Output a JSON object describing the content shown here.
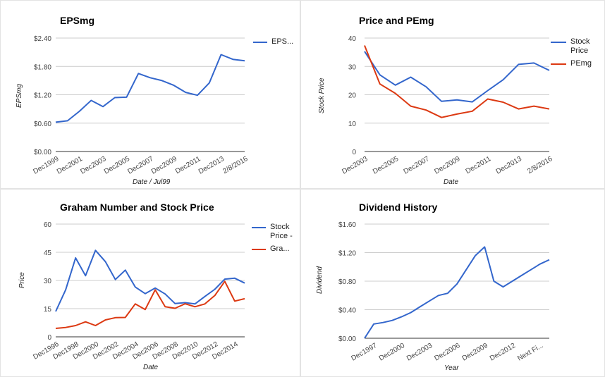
{
  "chart_data": [
    {
      "type": "line",
      "title": "EPSmg",
      "xlabel": "Date / Jul99",
      "ylabel": "EPSmg",
      "ylim": [
        0,
        2.4
      ],
      "yticks": [
        "$0.00",
        "$0.60",
        "$1.20",
        "$1.80",
        "$2.40"
      ],
      "categories": [
        "Dec1999",
        "",
        "Dec2001",
        "",
        "Dec2003",
        "",
        "Dec2005",
        "",
        "Dec2007",
        "",
        "Dec2009",
        "",
        "Dec2011",
        "",
        "Dec2013",
        "",
        "2/8/2016"
      ],
      "series": [
        {
          "name": "EPS...",
          "color": "#3366cc",
          "values": [
            0.62,
            0.65,
            0.85,
            1.08,
            0.95,
            1.14,
            1.15,
            1.65,
            1.56,
            1.5,
            1.4,
            1.25,
            1.19,
            1.45,
            2.05,
            1.95,
            1.92
          ]
        }
      ],
      "legend": "right",
      "grid": true
    },
    {
      "type": "line",
      "title": "Price and PEmg",
      "xlabel": "Date",
      "ylabel": "Stock Price",
      "ylim": [
        0,
        40
      ],
      "yticks": [
        "0",
        "10",
        "20",
        "30",
        "40"
      ],
      "categories": [
        "Dec2003",
        "",
        "Dec2005",
        "",
        "Dec2007",
        "",
        "Dec2009",
        "",
        "Dec2011",
        "",
        "Dec2013",
        "",
        "2/8/2016"
      ],
      "series": [
        {
          "name": "Stock Price",
          "color": "#3366cc",
          "values": [
            35.3,
            27,
            23.4,
            26.2,
            22.8,
            17.7,
            18.2,
            17.5,
            21.5,
            25.3,
            30.7,
            31.2,
            28.6
          ]
        },
        {
          "name": "PEmg",
          "color": "#dc3912",
          "values": [
            37.4,
            23.8,
            20.5,
            16,
            14.6,
            12,
            13.2,
            14.2,
            18.5,
            17.4,
            15,
            16,
            15
          ]
        }
      ],
      "legend": "right",
      "grid": true
    },
    {
      "type": "line",
      "title": "Graham Number and Stock Price",
      "xlabel": "Date",
      "ylabel": "Price",
      "ylim": [
        0,
        60
      ],
      "yticks": [
        "0",
        "15",
        "30",
        "45",
        "60"
      ],
      "categories": [
        "Dec1996",
        "",
        "Dec1998",
        "",
        "Dec2000",
        "",
        "Dec2002",
        "",
        "Dec2004",
        "",
        "Dec2006",
        "",
        "Dec2008",
        "",
        "Dec2010",
        "",
        "Dec2012",
        "",
        "Dec2014",
        ""
      ],
      "series": [
        {
          "name": "Stock Price - ",
          "color": "#3366cc",
          "values": [
            13.5,
            25,
            42,
            32.5,
            46,
            40,
            30.5,
            35.5,
            26.5,
            23,
            26,
            22.8,
            17.7,
            18.2,
            17.5,
            21.5,
            25.3,
            30.7,
            31.2,
            28.6
          ]
        },
        {
          "name": "Gra...",
          "color": "#dc3912",
          "values": [
            4.5,
            5,
            6,
            8,
            6,
            9,
            10.2,
            10.3,
            17.5,
            14.5,
            25,
            16,
            15.2,
            17.6,
            16,
            17.5,
            22,
            29.5,
            19,
            20.3
          ]
        }
      ],
      "legend": "right",
      "grid": true
    },
    {
      "type": "line",
      "title": "Dividend History",
      "xlabel": "Year",
      "ylabel": "Dividend",
      "ylim": [
        0,
        1.6
      ],
      "yticks": [
        "$0.00",
        "$0.40",
        "$0.80",
        "$1.20",
        "$1.60"
      ],
      "categories": [
        "",
        "Dec1997",
        "",
        "",
        "Dec2000",
        "",
        "",
        "Dec2003",
        "",
        "",
        "Dec2006",
        "",
        "",
        "Dec2009",
        "",
        "",
        "Dec2012",
        "",
        "",
        "Next Fi...",
        ""
      ],
      "series": [
        {
          "name": "Dividend",
          "color": "#3366cc",
          "values": [
            0.0,
            0.2,
            0.22,
            0.25,
            0.3,
            0.36,
            0.44,
            0.52,
            0.6,
            0.63,
            0.76,
            0.96,
            1.16,
            1.28,
            0.8,
            0.72,
            0.8,
            0.88,
            0.96,
            1.04,
            1.1
          ]
        }
      ],
      "legend": "none",
      "grid": true
    }
  ]
}
